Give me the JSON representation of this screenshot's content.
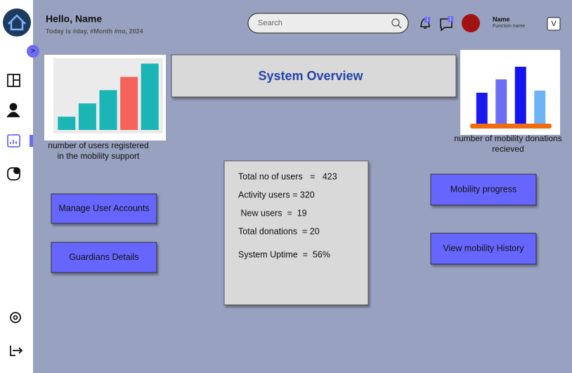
{
  "header": {
    "greeting": "Hello, Name",
    "date": "Today is #day, #Month #no, 2024",
    "search_placeholder": "Search",
    "notification_badge": "1",
    "message_badge": "1",
    "user_name": "Name",
    "user_role": "Function name",
    "dropdown": "V"
  },
  "sidebar": {
    "toggle": ">"
  },
  "users_chart": {
    "type": "bar",
    "values": [
      1,
      2,
      3,
      4,
      5
    ],
    "colors": [
      "#1bb5b5",
      "#1bb5b5",
      "#1bb5b5",
      "#f4635b",
      "#1bb5b5"
    ],
    "ylim": [
      0,
      5.4
    ],
    "caption": [
      "number of users registered",
      "in the mobility support"
    ]
  },
  "donations_chart": {
    "type": "bar",
    "values": [
      44,
      63,
      81,
      47
    ],
    "colors": [
      "#1a1aee",
      "#6e6ef5",
      "#1414f0",
      "#6fb2f5"
    ],
    "ylim": [
      0,
      100
    ],
    "caption": [
      "number of mobility donations",
      "recieved"
    ]
  },
  "overview": {
    "title": "System Overview",
    "stats": [
      "Total no of users   =   423",
      "Activity users = 320",
      " New users  =  19",
      "Total donations  = 20",
      "System Uptime  =  56%"
    ]
  },
  "buttons": [
    "Manage User Accounts",
    "Guardians Details",
    "Mobility progress",
    "View mobility History"
  ]
}
